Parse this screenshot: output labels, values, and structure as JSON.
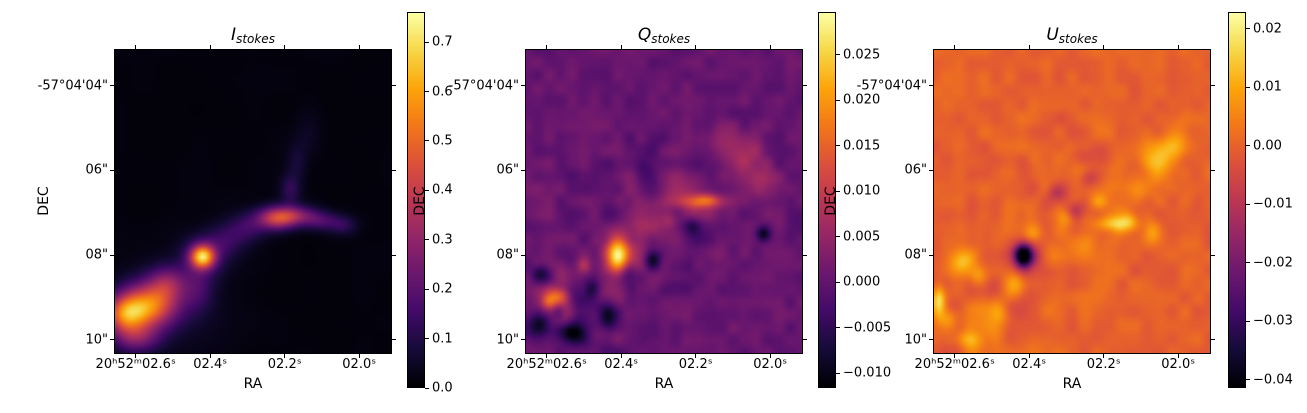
{
  "figure": {
    "background": "#ffffff"
  },
  "chart_data": {
    "type": "heatmap",
    "description": "Three-panel Stokes polarization maps (intensity images) with individual colorbars",
    "colormap": "inferno",
    "colormap_stops": [
      [
        0.0,
        "#000004"
      ],
      [
        0.1,
        "#160b39"
      ],
      [
        0.2,
        "#420a68"
      ],
      [
        0.3,
        "#6a176e"
      ],
      [
        0.4,
        "#932667"
      ],
      [
        0.5,
        "#bc3754"
      ],
      [
        0.6,
        "#dd513a"
      ],
      [
        0.7,
        "#f37819"
      ],
      [
        0.8,
        "#fca50a"
      ],
      [
        0.9,
        "#f6d746"
      ],
      [
        1.0,
        "#fcffa4"
      ]
    ],
    "shared_axes": {
      "xlabel": "RA",
      "ylabel": "DEC",
      "xticks": {
        "labels": [
          "20ʰ52ᵐ02.6ˢ",
          "02.4ˢ",
          "02.2ˢ",
          "02.0ˢ"
        ],
        "fractions": [
          0.078,
          0.346,
          0.614,
          0.882
        ]
      },
      "yticks": {
        "labels": [
          "-57°04'04\"",
          "06\"",
          "08\"",
          "10\""
        ],
        "fractions": [
          0.12,
          0.398,
          0.676,
          0.954
        ]
      }
    },
    "panels": [
      {
        "title": {
          "main": "I",
          "sub": "stokes"
        },
        "colorbar": {
          "vmin": 0.0,
          "vmax": 0.761,
          "tick_labels": [
            "0.0",
            "0.1",
            "0.2",
            "0.3",
            "0.4",
            "0.5",
            "0.6",
            "0.7"
          ],
          "tick_values": [
            0.0,
            0.1,
            0.2,
            0.3,
            0.4,
            0.5,
            0.6,
            0.7
          ]
        },
        "field": {
          "grid": 84,
          "seed": 7,
          "background": 0.012,
          "blobs": [
            [
              0.115,
              0.845,
              0.075,
              0.05,
              0.5
            ],
            [
              0.035,
              0.875,
              0.05,
              0.04,
              0.35
            ],
            [
              0.075,
              0.95,
              0.06,
              0.035,
              0.22
            ],
            [
              0.19,
              0.77,
              0.05,
              0.04,
              0.22
            ],
            [
              0.317,
              0.682,
              0.03,
              0.026,
              0.55
            ],
            [
              0.317,
              0.682,
              0.055,
              0.05,
              0.15
            ],
            [
              0.3,
              0.79,
              0.04,
              0.05,
              0.1
            ],
            [
              0.4,
              0.63,
              0.05,
              0.04,
              0.1
            ],
            [
              0.48,
              0.585,
              0.05,
              0.035,
              0.12
            ],
            [
              0.587,
              0.555,
              0.05,
              0.026,
              0.38
            ],
            [
              0.66,
              0.545,
              0.055,
              0.022,
              0.2
            ],
            [
              0.75,
              0.565,
              0.05,
              0.022,
              0.14
            ],
            [
              0.83,
              0.58,
              0.035,
              0.022,
              0.09
            ],
            [
              0.635,
              0.46,
              0.025,
              0.035,
              0.11
            ],
            [
              0.66,
              0.37,
              0.026,
              0.045,
              0.06
            ],
            [
              0.7,
              0.28,
              0.035,
              0.05,
              0.035
            ],
            [
              0.2,
              0.85,
              0.14,
              0.1,
              0.05
            ]
          ],
          "noise": [
            {
              "amp": 0.005,
              "scale": 10
            }
          ]
        }
      },
      {
        "title": {
          "main": "Q",
          "sub": "stokes"
        },
        "colorbar": {
          "vmin": -0.0116,
          "vmax": 0.0297,
          "tick_labels": [
            "0.025",
            "0.020",
            "0.015",
            "0.010",
            "0.005",
            "0.000",
            "−0.005",
            "−0.010"
          ],
          "tick_values": [
            0.025,
            0.02,
            0.015,
            0.01,
            0.005,
            0.0,
            -0.005,
            -0.01
          ]
        },
        "field": {
          "grid": 84,
          "seed": 11,
          "background": 0.0004,
          "blobs": [
            [
              0.332,
              0.678,
              0.026,
              0.036,
              0.0238
            ],
            [
              0.332,
              0.678,
              0.05,
              0.06,
              0.006
            ],
            [
              0.12,
              0.813,
              0.026,
              0.022,
              0.0165
            ],
            [
              0.05,
              0.74,
              0.022,
              0.022,
              -0.0075
            ],
            [
              0.05,
              0.9,
              0.03,
              0.028,
              -0.0095
            ],
            [
              0.17,
              0.93,
              0.033,
              0.024,
              -0.0105
            ],
            [
              0.12,
              0.865,
              0.018,
              0.018,
              -0.008
            ],
            [
              0.3,
              0.88,
              0.024,
              0.03,
              -0.009
            ],
            [
              0.24,
              0.79,
              0.02,
              0.024,
              -0.007
            ],
            [
              0.37,
              0.73,
              0.02,
              0.028,
              -0.0075
            ],
            [
              0.46,
              0.69,
              0.02,
              0.022,
              -0.008
            ],
            [
              0.08,
              0.83,
              0.018,
              0.018,
              0.009
            ],
            [
              0.21,
              0.71,
              0.018,
              0.018,
              0.006
            ],
            [
              0.45,
              0.55,
              0.05,
              0.04,
              0.0045
            ],
            [
              0.55,
              0.46,
              0.05,
              0.04,
              0.004
            ],
            [
              0.62,
              0.5,
              0.075,
              0.017,
              0.0095
            ],
            [
              0.66,
              0.495,
              0.028,
              0.014,
              0.007
            ],
            [
              0.52,
              0.56,
              0.028,
              0.025,
              0.006
            ],
            [
              0.78,
              0.34,
              0.055,
              0.045,
              0.006
            ],
            [
              0.7,
              0.295,
              0.04,
              0.04,
              0.0045
            ],
            [
              0.86,
              0.44,
              0.04,
              0.04,
              0.005
            ],
            [
              0.86,
              0.607,
              0.018,
              0.018,
              -0.0115
            ],
            [
              0.6,
              0.58,
              0.024,
              0.02,
              -0.0075
            ],
            [
              0.43,
              0.4,
              0.03,
              0.03,
              -0.004
            ]
          ],
          "noise": [
            {
              "amp": 0.0018,
              "scale": 24
            },
            {
              "amp": 0.0085,
              "scale": 15,
              "mask": [
                0.14,
                0.88,
                0.17,
                0.11
              ]
            },
            {
              "amp": 0.0042,
              "scale": 13,
              "mask": [
                0.52,
                0.55,
                0.28,
                0.2
              ]
            }
          ]
        }
      },
      {
        "title": {
          "main": "U",
          "sub": "stokes"
        },
        "colorbar": {
          "vmin": -0.0414,
          "vmax": 0.0229,
          "tick_labels": [
            "0.02",
            "0.01",
            "0.00",
            "−0.01",
            "−0.02",
            "−0.03",
            "−0.04"
          ],
          "tick_values": [
            0.02,
            0.01,
            0.0,
            -0.01,
            -0.02,
            -0.03,
            -0.04
          ]
        },
        "field": {
          "grid": 84,
          "seed": 23,
          "background": -0.0002,
          "blobs": [
            [
              0.324,
              0.678,
              0.021,
              0.024,
              -0.046
            ],
            [
              0.334,
              0.672,
              0.045,
              0.04,
              -0.011
            ],
            [
              0.51,
              0.53,
              0.03,
              0.022,
              -0.012
            ],
            [
              0.56,
              0.42,
              0.025,
              0.02,
              -0.009
            ],
            [
              0.44,
              0.47,
              0.025,
              0.02,
              -0.008
            ],
            [
              0.655,
              0.574,
              0.05,
              0.017,
              0.0145
            ],
            [
              0.71,
              0.56,
              0.02,
              0.02,
              0.008
            ],
            [
              0.79,
              0.6,
              0.024,
              0.024,
              0.01
            ],
            [
              0.82,
              0.36,
              0.042,
              0.05,
              0.0125
            ],
            [
              0.88,
              0.3,
              0.03,
              0.04,
              0.008
            ],
            [
              0.74,
              0.46,
              0.03,
              0.03,
              0.006
            ],
            [
              0.018,
              0.826,
              0.016,
              0.035,
              0.02
            ],
            [
              0.105,
              0.7,
              0.03,
              0.028,
              0.0125
            ],
            [
              0.16,
              0.745,
              0.024,
              0.024,
              0.009
            ],
            [
              0.05,
              0.88,
              0.028,
              0.024,
              0.01
            ],
            [
              0.13,
              0.955,
              0.033,
              0.02,
              0.0125
            ],
            [
              0.3,
              0.77,
              0.03,
              0.025,
              0.009
            ],
            [
              0.36,
              0.605,
              0.024,
              0.02,
              0.008
            ],
            [
              0.42,
              0.68,
              0.03,
              0.03,
              0.006
            ],
            [
              0.55,
              0.63,
              0.03,
              0.028,
              0.006
            ],
            [
              0.48,
              0.55,
              0.02,
              0.02,
              0.007
            ],
            [
              0.25,
              0.87,
              0.03,
              0.025,
              0.007
            ],
            [
              0.6,
              0.5,
              0.022,
              0.018,
              0.009
            ]
          ],
          "noise": [
            {
              "amp": 0.0022,
              "scale": 22
            },
            {
              "amp": 0.0065,
              "scale": 14,
              "mask": [
                0.15,
                0.85,
                0.2,
                0.13
              ]
            },
            {
              "amp": 0.0045,
              "scale": 15,
              "mask": [
                0.6,
                0.47,
                0.28,
                0.2
              ]
            }
          ]
        }
      }
    ]
  }
}
